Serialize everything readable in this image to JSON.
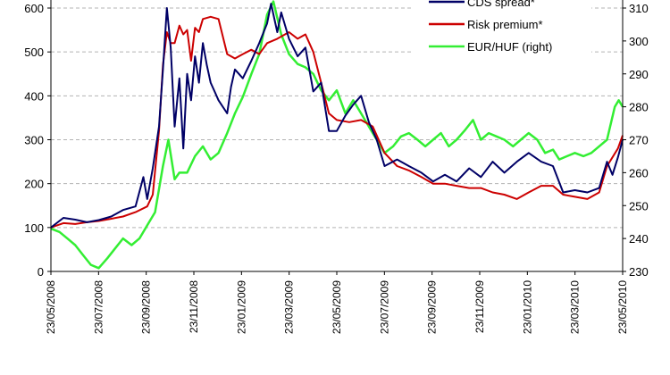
{
  "chart_data": {
    "type": "line",
    "title": "",
    "xlabel": "",
    "ylabel": "",
    "ylim_left": [
      0,
      600
    ],
    "ylim_right": [
      230,
      310
    ],
    "yticks_left": [
      0,
      100,
      200,
      300,
      400,
      500,
      600
    ],
    "yticks_right": [
      230,
      240,
      250,
      260,
      270,
      280,
      290,
      300,
      310
    ],
    "xticks": [
      "23/05/2008",
      "23/07/2008",
      "23/09/2008",
      "23/11/2008",
      "23/01/2009",
      "23/03/2009",
      "23/05/2009",
      "23/07/2009",
      "23/09/2009",
      "23/11/2009",
      "23/01/2010",
      "23/03/2010",
      "23/05/2010"
    ],
    "grid": true,
    "legend_position": "top-right",
    "series": [
      {
        "name": "CDS spread*",
        "axis": "left",
        "color": "#000066",
        "points": [
          [
            "2008-05-23",
            100
          ],
          [
            "2008-06-08",
            122
          ],
          [
            "2008-06-23",
            118
          ],
          [
            "2008-07-08",
            112
          ],
          [
            "2008-07-23",
            117
          ],
          [
            "2008-08-08",
            125
          ],
          [
            "2008-08-23",
            140
          ],
          [
            "2008-09-08",
            148
          ],
          [
            "2008-09-18",
            215
          ],
          [
            "2008-09-23",
            165
          ],
          [
            "2008-09-30",
            235
          ],
          [
            "2008-10-08",
            330
          ],
          [
            "2008-10-13",
            460
          ],
          [
            "2008-10-18",
            600
          ],
          [
            "2008-10-23",
            510
          ],
          [
            "2008-10-28",
            330
          ],
          [
            "2008-11-03",
            440
          ],
          [
            "2008-11-08",
            280
          ],
          [
            "2008-11-13",
            450
          ],
          [
            "2008-11-18",
            390
          ],
          [
            "2008-11-23",
            490
          ],
          [
            "2008-11-28",
            430
          ],
          [
            "2008-12-03",
            520
          ],
          [
            "2008-12-08",
            470
          ],
          [
            "2008-12-13",
            430
          ],
          [
            "2008-12-18",
            410
          ],
          [
            "2008-12-23",
            390
          ],
          [
            "2009-01-03",
            360
          ],
          [
            "2009-01-08",
            420
          ],
          [
            "2009-01-13",
            460
          ],
          [
            "2009-01-23",
            440
          ],
          [
            "2009-02-03",
            480
          ],
          [
            "2009-02-13",
            520
          ],
          [
            "2009-02-23",
            565
          ],
          [
            "2009-02-28",
            610
          ],
          [
            "2009-03-08",
            545
          ],
          [
            "2009-03-13",
            590
          ],
          [
            "2009-03-23",
            530
          ],
          [
            "2009-04-03",
            490
          ],
          [
            "2009-04-13",
            510
          ],
          [
            "2009-04-23",
            410
          ],
          [
            "2009-05-03",
            430
          ],
          [
            "2009-05-13",
            320
          ],
          [
            "2009-05-23",
            320
          ],
          [
            "2009-06-03",
            355
          ],
          [
            "2009-06-13",
            380
          ],
          [
            "2009-06-23",
            400
          ],
          [
            "2009-07-03",
            340
          ],
          [
            "2009-07-13",
            300
          ],
          [
            "2009-07-23",
            240
          ],
          [
            "2009-08-08",
            255
          ],
          [
            "2009-08-23",
            240
          ],
          [
            "2009-09-08",
            225
          ],
          [
            "2009-09-23",
            205
          ],
          [
            "2009-10-08",
            220
          ],
          [
            "2009-10-23",
            205
          ],
          [
            "2009-11-08",
            235
          ],
          [
            "2009-11-23",
            215
          ],
          [
            "2009-12-08",
            250
          ],
          [
            "2009-12-23",
            225
          ],
          [
            "2010-01-08",
            250
          ],
          [
            "2010-01-23",
            270
          ],
          [
            "2010-02-08",
            250
          ],
          [
            "2010-02-23",
            240
          ],
          [
            "2010-03-08",
            180
          ],
          [
            "2010-03-23",
            185
          ],
          [
            "2010-04-08",
            180
          ],
          [
            "2010-04-23",
            190
          ],
          [
            "2010-05-03",
            250
          ],
          [
            "2010-05-10",
            220
          ],
          [
            "2010-05-17",
            260
          ],
          [
            "2010-05-23",
            300
          ]
        ]
      },
      {
        "name": "Risk premium*",
        "axis": "left",
        "color": "#cc0000",
        "points": [
          [
            "2008-05-23",
            100
          ],
          [
            "2008-06-08",
            110
          ],
          [
            "2008-06-23",
            108
          ],
          [
            "2008-07-08",
            112
          ],
          [
            "2008-07-23",
            115
          ],
          [
            "2008-08-08",
            120
          ],
          [
            "2008-08-23",
            125
          ],
          [
            "2008-09-08",
            135
          ],
          [
            "2008-09-23",
            148
          ],
          [
            "2008-09-30",
            175
          ],
          [
            "2008-10-08",
            320
          ],
          [
            "2008-10-13",
            470
          ],
          [
            "2008-10-18",
            545
          ],
          [
            "2008-10-23",
            520
          ],
          [
            "2008-10-28",
            520
          ],
          [
            "2008-11-03",
            560
          ],
          [
            "2008-11-08",
            540
          ],
          [
            "2008-11-13",
            550
          ],
          [
            "2008-11-18",
            480
          ],
          [
            "2008-11-23",
            555
          ],
          [
            "2008-11-28",
            545
          ],
          [
            "2008-12-03",
            575
          ],
          [
            "2008-12-13",
            580
          ],
          [
            "2008-12-23",
            575
          ],
          [
            "2009-01-03",
            495
          ],
          [
            "2009-01-13",
            485
          ],
          [
            "2009-01-23",
            495
          ],
          [
            "2009-02-03",
            505
          ],
          [
            "2009-02-13",
            495
          ],
          [
            "2009-02-23",
            520
          ],
          [
            "2009-03-08",
            530
          ],
          [
            "2009-03-23",
            545
          ],
          [
            "2009-04-03",
            530
          ],
          [
            "2009-04-13",
            540
          ],
          [
            "2009-04-23",
            500
          ],
          [
            "2009-05-03",
            430
          ],
          [
            "2009-05-13",
            360
          ],
          [
            "2009-05-23",
            345
          ],
          [
            "2009-06-08",
            340
          ],
          [
            "2009-06-23",
            345
          ],
          [
            "2009-07-08",
            330
          ],
          [
            "2009-07-23",
            270
          ],
          [
            "2009-08-08",
            240
          ],
          [
            "2009-08-23",
            230
          ],
          [
            "2009-09-08",
            215
          ],
          [
            "2009-09-23",
            200
          ],
          [
            "2009-10-08",
            200
          ],
          [
            "2009-10-23",
            195
          ],
          [
            "2009-11-08",
            190
          ],
          [
            "2009-11-23",
            190
          ],
          [
            "2009-12-08",
            180
          ],
          [
            "2009-12-23",
            175
          ],
          [
            "2010-01-08",
            165
          ],
          [
            "2010-01-23",
            180
          ],
          [
            "2010-02-08",
            195
          ],
          [
            "2010-02-23",
            195
          ],
          [
            "2010-03-08",
            175
          ],
          [
            "2010-03-23",
            170
          ],
          [
            "2010-04-08",
            165
          ],
          [
            "2010-04-23",
            180
          ],
          [
            "2010-05-03",
            240
          ],
          [
            "2010-05-10",
            260
          ],
          [
            "2010-05-17",
            280
          ],
          [
            "2010-05-23",
            310
          ]
        ]
      },
      {
        "name": "EUR/HUF (right)",
        "axis": "right",
        "color": "#33ee33",
        "points": [
          [
            "2008-05-23",
            243
          ],
          [
            "2008-06-03",
            242
          ],
          [
            "2008-06-13",
            240
          ],
          [
            "2008-06-23",
            238
          ],
          [
            "2008-07-03",
            235
          ],
          [
            "2008-07-13",
            232
          ],
          [
            "2008-07-23",
            231
          ],
          [
            "2008-08-03",
            234
          ],
          [
            "2008-08-13",
            237
          ],
          [
            "2008-08-23",
            240
          ],
          [
            "2008-09-03",
            238
          ],
          [
            "2008-09-13",
            240
          ],
          [
            "2008-09-23",
            244
          ],
          [
            "2008-10-03",
            248
          ],
          [
            "2008-10-13",
            262
          ],
          [
            "2008-10-20",
            270
          ],
          [
            "2008-10-28",
            258
          ],
          [
            "2008-11-03",
            260
          ],
          [
            "2008-11-13",
            260
          ],
          [
            "2008-11-23",
            265
          ],
          [
            "2008-12-03",
            268
          ],
          [
            "2008-12-13",
            264
          ],
          [
            "2008-12-23",
            266
          ],
          [
            "2009-01-03",
            272
          ],
          [
            "2009-01-13",
            278
          ],
          [
            "2009-01-23",
            283
          ],
          [
            "2009-02-03",
            290
          ],
          [
            "2009-02-13",
            296
          ],
          [
            "2009-02-23",
            308
          ],
          [
            "2009-03-03",
            312
          ],
          [
            "2009-03-13",
            302
          ],
          [
            "2009-03-23",
            296
          ],
          [
            "2009-04-03",
            293
          ],
          [
            "2009-04-13",
            292
          ],
          [
            "2009-04-23",
            290
          ],
          [
            "2009-05-03",
            285
          ],
          [
            "2009-05-13",
            282
          ],
          [
            "2009-05-23",
            285
          ],
          [
            "2009-06-03",
            278
          ],
          [
            "2009-06-13",
            282
          ],
          [
            "2009-06-23",
            278
          ],
          [
            "2009-07-03",
            274
          ],
          [
            "2009-07-13",
            270
          ],
          [
            "2009-07-23",
            266
          ],
          [
            "2009-08-03",
            268
          ],
          [
            "2009-08-13",
            271
          ],
          [
            "2009-08-23",
            272
          ],
          [
            "2009-09-03",
            270
          ],
          [
            "2009-09-13",
            268
          ],
          [
            "2009-09-23",
            270
          ],
          [
            "2009-10-03",
            272
          ],
          [
            "2009-10-13",
            268
          ],
          [
            "2009-10-23",
            270
          ],
          [
            "2009-11-03",
            273
          ],
          [
            "2009-11-13",
            276
          ],
          [
            "2009-11-23",
            270
          ],
          [
            "2009-12-03",
            272
          ],
          [
            "2009-12-13",
            271
          ],
          [
            "2009-12-23",
            270
          ],
          [
            "2010-01-03",
            268
          ],
          [
            "2010-01-13",
            270
          ],
          [
            "2010-01-23",
            272
          ],
          [
            "2010-02-03",
            270
          ],
          [
            "2010-02-13",
            266
          ],
          [
            "2010-02-23",
            267
          ],
          [
            "2010-03-03",
            264
          ],
          [
            "2010-03-13",
            265
          ],
          [
            "2010-03-23",
            266
          ],
          [
            "2010-04-03",
            265
          ],
          [
            "2010-04-13",
            266
          ],
          [
            "2010-04-23",
            268
          ],
          [
            "2010-05-03",
            270
          ],
          [
            "2010-05-13",
            280
          ],
          [
            "2010-05-18",
            282
          ],
          [
            "2010-05-23",
            280
          ]
        ]
      }
    ]
  }
}
